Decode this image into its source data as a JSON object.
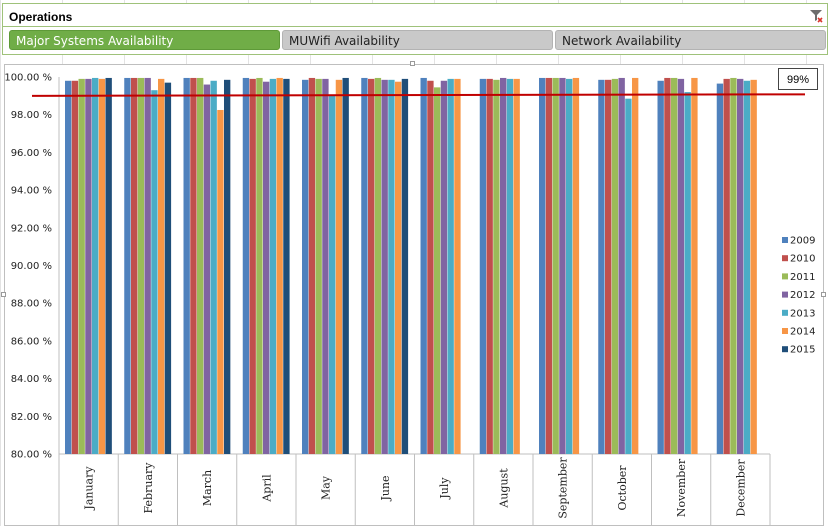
{
  "slicer": {
    "title": "Operations",
    "buttons": [
      {
        "label": "Major Systems Availability",
        "selected": true
      },
      {
        "label": "MUWifi Availability",
        "selected": false
      },
      {
        "label": "Network Availability",
        "selected": false
      }
    ]
  },
  "target_label": "99%",
  "chart_data": {
    "type": "bar",
    "title": "",
    "xlabel": "",
    "ylabel": "",
    "ylim": [
      80,
      100
    ],
    "ytick_step": 2,
    "ytick_format": "percent_2dp",
    "grid": false,
    "legend": "right",
    "target_line": 99,
    "target_color": "#c00000",
    "categories": [
      "January",
      "February",
      "March",
      "April",
      "May",
      "June",
      "July",
      "August",
      "September",
      "October",
      "November",
      "December"
    ],
    "series": [
      {
        "name": "2009",
        "color": "#4f81bd",
        "values": [
          99.8,
          99.95,
          99.95,
          99.95,
          99.85,
          99.95,
          99.95,
          99.9,
          99.95,
          99.85,
          99.8,
          99.65
        ]
      },
      {
        "name": "2010",
        "color": "#c0504d",
        "values": [
          99.8,
          99.95,
          99.95,
          99.9,
          99.95,
          99.9,
          99.8,
          99.9,
          99.95,
          99.85,
          99.95,
          99.9
        ]
      },
      {
        "name": "2011",
        "color": "#9bbb59",
        "values": [
          99.9,
          99.95,
          99.95,
          99.95,
          99.9,
          99.95,
          99.45,
          99.85,
          99.95,
          99.9,
          99.95,
          99.95
        ]
      },
      {
        "name": "2012",
        "color": "#8064a2",
        "values": [
          99.9,
          99.95,
          99.6,
          99.75,
          99.9,
          99.85,
          99.8,
          99.95,
          99.95,
          99.95,
          99.9,
          99.9
        ]
      },
      {
        "name": "2013",
        "color": "#4bacc6",
        "values": [
          99.95,
          99.3,
          99.8,
          99.9,
          99.05,
          99.85,
          99.9,
          99.9,
          99.9,
          98.85,
          99.2,
          99.8
        ]
      },
      {
        "name": "2014",
        "color": "#f79646",
        "values": [
          99.9,
          99.9,
          98.25,
          99.95,
          99.85,
          99.75,
          99.9,
          99.9,
          99.95,
          99.95,
          99.95,
          99.85
        ]
      },
      {
        "name": "2015",
        "color": "#1f4e79",
        "values": [
          99.95,
          99.7,
          99.85,
          99.9,
          99.95,
          99.9,
          null,
          null,
          null,
          null,
          null,
          null
        ]
      }
    ]
  }
}
